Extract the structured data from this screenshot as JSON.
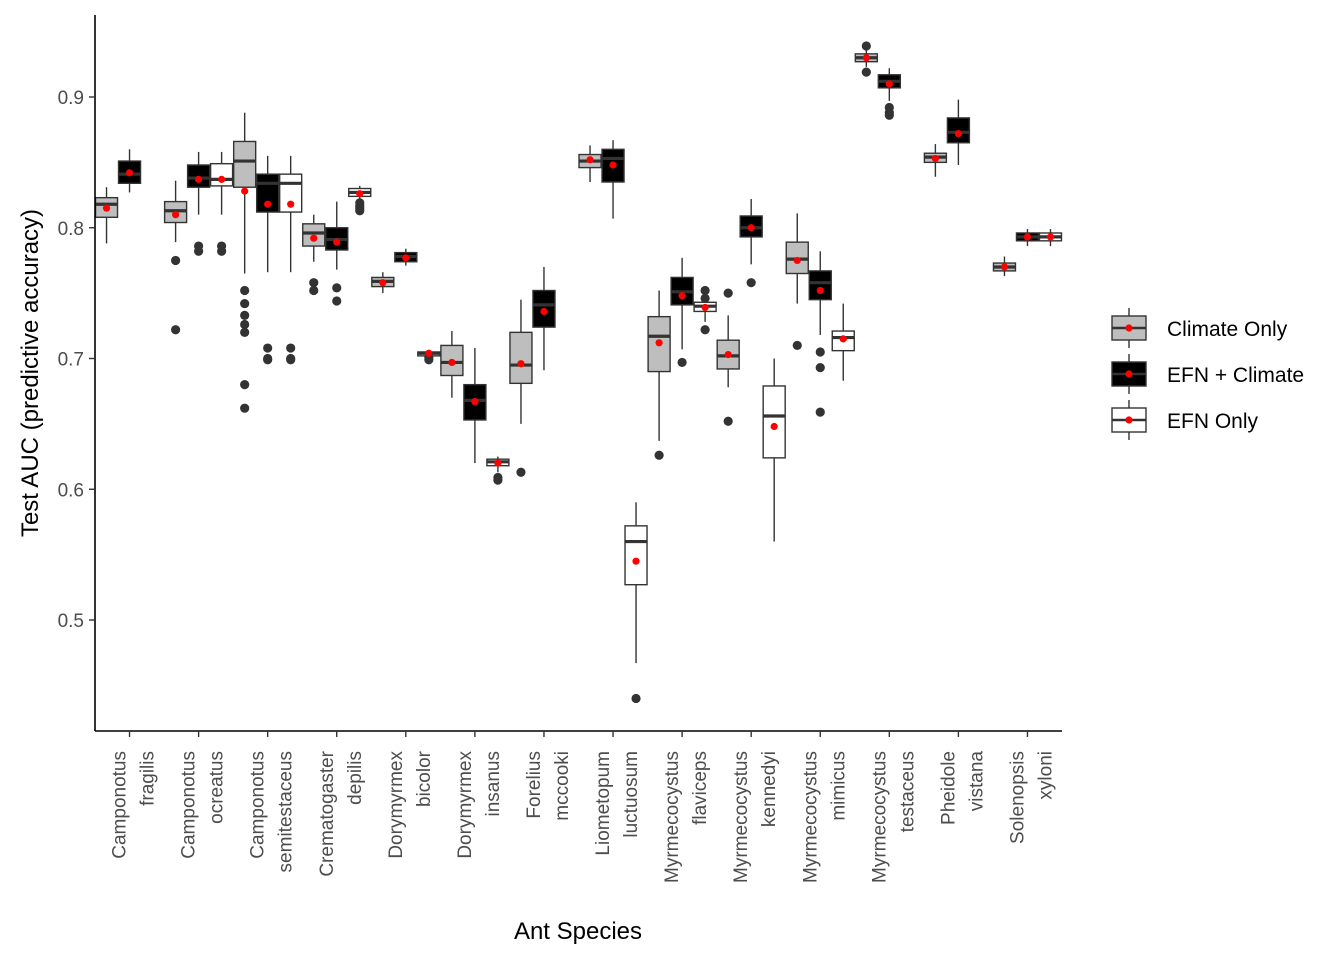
{
  "chart_data": {
    "type": "boxplot",
    "xlabel": "Ant Species",
    "ylabel": "Test AUC (predictive accuracy)",
    "ylim": [
      0.43,
      0.96
    ],
    "yticks": [
      0.5,
      0.6,
      0.7,
      0.8,
      0.9
    ],
    "ytick_labels": [
      "0.5",
      "0.6",
      "0.7",
      "0.8",
      "0.9"
    ],
    "grid": false,
    "legend_position": "right",
    "mean_marker_color": "#ff0000",
    "categories": [
      [
        "Camponotus",
        "fragilis"
      ],
      [
        "Camponotus",
        "ocreatus"
      ],
      [
        "Camponotus",
        "semitestaceus"
      ],
      [
        "Crematogaster",
        "depilis"
      ],
      [
        "Dorymyrmex",
        "bicolor"
      ],
      [
        "Dorymyrmex",
        "insanus"
      ],
      [
        "Forelius",
        "mccooki"
      ],
      [
        "Liometopum",
        "luctuosum"
      ],
      [
        "Myrmecocystus",
        "flaviceps"
      ],
      [
        "Myrmecocystus",
        "kennedyi"
      ],
      [
        "Myrmecocystus",
        "mimicus"
      ],
      [
        "Myrmecocystus",
        "testaceus"
      ],
      [
        "Pheidole",
        "vistana"
      ],
      [
        "Solenopsis",
        "xyloni"
      ]
    ],
    "series": [
      {
        "name": "Climate Only",
        "fill": "#bebebe",
        "line": "#333333",
        "boxes": [
          {
            "cat": 0,
            "wlo": 0.788,
            "q1": 0.808,
            "med": 0.818,
            "q3": 0.823,
            "whi": 0.831,
            "mean": 0.815,
            "outliers": []
          },
          {
            "cat": 1,
            "wlo": 0.789,
            "q1": 0.804,
            "med": 0.813,
            "q3": 0.82,
            "whi": 0.836,
            "mean": 0.81,
            "outliers": [
              0.775,
              0.722
            ]
          },
          {
            "cat": 2,
            "wlo": 0.765,
            "q1": 0.831,
            "med": 0.851,
            "q3": 0.866,
            "whi": 0.888,
            "mean": 0.828,
            "outliers": [
              0.752,
              0.742,
              0.733,
              0.726,
              0.72,
              0.68,
              0.662
            ]
          },
          {
            "cat": 3,
            "wlo": 0.774,
            "q1": 0.786,
            "med": 0.796,
            "q3": 0.803,
            "whi": 0.81,
            "mean": 0.792,
            "outliers": [
              0.758,
              0.752
            ]
          },
          {
            "cat": 4,
            "wlo": 0.75,
            "q1": 0.755,
            "med": 0.759,
            "q3": 0.762,
            "whi": 0.766,
            "mean": 0.758,
            "outliers": []
          },
          {
            "cat": 5,
            "wlo": 0.67,
            "q1": 0.687,
            "med": 0.697,
            "q3": 0.71,
            "whi": 0.721,
            "mean": 0.697,
            "outliers": []
          },
          {
            "cat": 6,
            "wlo": 0.65,
            "q1": 0.681,
            "med": 0.695,
            "q3": 0.72,
            "whi": 0.745,
            "mean": 0.696,
            "outliers": [
              0.613
            ]
          },
          {
            "cat": 7,
            "wlo": 0.835,
            "q1": 0.846,
            "med": 0.851,
            "q3": 0.856,
            "whi": 0.863,
            "mean": 0.852,
            "outliers": []
          },
          {
            "cat": 8,
            "wlo": 0.637,
            "q1": 0.69,
            "med": 0.717,
            "q3": 0.732,
            "whi": 0.752,
            "mean": 0.712,
            "outliers": [
              0.626
            ]
          },
          {
            "cat": 9,
            "wlo": 0.678,
            "q1": 0.692,
            "med": 0.702,
            "q3": 0.714,
            "whi": 0.733,
            "mean": 0.703,
            "outliers": [
              0.75,
              0.652
            ]
          },
          {
            "cat": 10,
            "wlo": 0.742,
            "q1": 0.765,
            "med": 0.776,
            "q3": 0.789,
            "whi": 0.811,
            "mean": 0.775,
            "outliers": [
              0.71
            ]
          },
          {
            "cat": 11,
            "wlo": 0.923,
            "q1": 0.927,
            "med": 0.93,
            "q3": 0.933,
            "whi": 0.936,
            "mean": 0.93,
            "outliers": [
              0.939,
              0.919
            ]
          },
          {
            "cat": 12,
            "wlo": 0.839,
            "q1": 0.85,
            "med": 0.854,
            "q3": 0.857,
            "whi": 0.864,
            "mean": 0.853,
            "outliers": []
          },
          {
            "cat": 13,
            "wlo": 0.763,
            "q1": 0.767,
            "med": 0.77,
            "q3": 0.773,
            "whi": 0.778,
            "mean": 0.77,
            "outliers": []
          }
        ]
      },
      {
        "name": "EFN + Climate",
        "fill": "#000000",
        "line": "#333333",
        "boxes": [
          {
            "cat": 0,
            "wlo": 0.827,
            "q1": 0.834,
            "med": 0.841,
            "q3": 0.851,
            "whi": 0.86,
            "mean": 0.842,
            "outliers": []
          },
          {
            "cat": 1,
            "wlo": 0.81,
            "q1": 0.831,
            "med": 0.838,
            "q3": 0.848,
            "whi": 0.858,
            "mean": 0.837,
            "outliers": [
              0.786,
              0.782
            ]
          },
          {
            "cat": 2,
            "wlo": 0.766,
            "q1": 0.812,
            "med": 0.834,
            "q3": 0.841,
            "whi": 0.855,
            "mean": 0.818,
            "outliers": [
              0.708,
              0.7,
              0.699
            ]
          },
          {
            "cat": 3,
            "wlo": 0.768,
            "q1": 0.783,
            "med": 0.791,
            "q3": 0.8,
            "whi": 0.82,
            "mean": 0.789,
            "outliers": [
              0.754,
              0.744
            ]
          },
          {
            "cat": 4,
            "wlo": 0.771,
            "q1": 0.774,
            "med": 0.778,
            "q3": 0.781,
            "whi": 0.784,
            "mean": 0.777,
            "outliers": []
          },
          {
            "cat": 5,
            "wlo": 0.62,
            "q1": 0.653,
            "med": 0.668,
            "q3": 0.68,
            "whi": 0.708,
            "mean": 0.667,
            "outliers": []
          },
          {
            "cat": 6,
            "wlo": 0.691,
            "q1": 0.724,
            "med": 0.741,
            "q3": 0.752,
            "whi": 0.77,
            "mean": 0.736,
            "outliers": []
          },
          {
            "cat": 7,
            "wlo": 0.807,
            "q1": 0.835,
            "med": 0.853,
            "q3": 0.86,
            "whi": 0.867,
            "mean": 0.848,
            "outliers": []
          },
          {
            "cat": 8,
            "wlo": 0.707,
            "q1": 0.741,
            "med": 0.751,
            "q3": 0.762,
            "whi": 0.777,
            "mean": 0.748,
            "outliers": [
              0.697
            ]
          },
          {
            "cat": 9,
            "wlo": 0.772,
            "q1": 0.793,
            "med": 0.8,
            "q3": 0.809,
            "whi": 0.822,
            "mean": 0.8,
            "outliers": [
              0.758
            ]
          },
          {
            "cat": 10,
            "wlo": 0.718,
            "q1": 0.745,
            "med": 0.758,
            "q3": 0.767,
            "whi": 0.782,
            "mean": 0.752,
            "outliers": [
              0.705,
              0.693,
              0.659
            ]
          },
          {
            "cat": 11,
            "wlo": 0.897,
            "q1": 0.907,
            "med": 0.912,
            "q3": 0.917,
            "whi": 0.922,
            "mean": 0.91,
            "outliers": [
              0.892,
              0.888,
              0.886
            ]
          },
          {
            "cat": 12,
            "wlo": 0.848,
            "q1": 0.865,
            "med": 0.873,
            "q3": 0.884,
            "whi": 0.898,
            "mean": 0.872,
            "outliers": []
          },
          {
            "cat": 13,
            "wlo": 0.786,
            "q1": 0.79,
            "med": 0.793,
            "q3": 0.796,
            "whi": 0.799,
            "mean": 0.793,
            "outliers": []
          }
        ]
      },
      {
        "name": "EFN Only",
        "fill": "#ffffff",
        "line": "#333333",
        "boxes": [
          {
            "cat": 1,
            "wlo": 0.81,
            "q1": 0.832,
            "med": 0.837,
            "q3": 0.849,
            "whi": 0.858,
            "mean": 0.837,
            "outliers": [
              0.786,
              0.782
            ]
          },
          {
            "cat": 2,
            "wlo": 0.766,
            "q1": 0.812,
            "med": 0.834,
            "q3": 0.841,
            "whi": 0.855,
            "mean": 0.818,
            "outliers": [
              0.708,
              0.7,
              0.699
            ]
          },
          {
            "cat": 3,
            "wlo": 0.82,
            "q1": 0.824,
            "med": 0.827,
            "q3": 0.83,
            "whi": 0.832,
            "mean": 0.826,
            "outliers": [
              0.819,
              0.817,
              0.815,
              0.813
            ]
          },
          {
            "cat": 4,
            "wlo": 0.7,
            "q1": 0.702,
            "med": 0.704,
            "q3": 0.705,
            "whi": 0.706,
            "mean": 0.704,
            "outliers": [
              0.701,
              0.699
            ]
          },
          {
            "cat": 5,
            "wlo": 0.613,
            "q1": 0.618,
            "med": 0.621,
            "q3": 0.623,
            "whi": 0.625,
            "mean": 0.62,
            "outliers": [
              0.609,
              0.607
            ]
          },
          {
            "cat": 7,
            "wlo": 0.467,
            "q1": 0.527,
            "med": 0.56,
            "q3": 0.572,
            "whi": 0.59,
            "mean": 0.545,
            "outliers": [
              0.44
            ]
          },
          {
            "cat": 8,
            "wlo": 0.728,
            "q1": 0.736,
            "med": 0.74,
            "q3": 0.743,
            "whi": 0.748,
            "mean": 0.739,
            "outliers": [
              0.752,
              0.746,
              0.722
            ]
          },
          {
            "cat": 9,
            "wlo": 0.56,
            "q1": 0.624,
            "med": 0.656,
            "q3": 0.679,
            "whi": 0.7,
            "mean": 0.648,
            "outliers": []
          },
          {
            "cat": 10,
            "wlo": 0.683,
            "q1": 0.706,
            "med": 0.716,
            "q3": 0.721,
            "whi": 0.742,
            "mean": 0.715,
            "outliers": []
          },
          {
            "cat": 13,
            "wlo": 0.786,
            "q1": 0.79,
            "med": 0.793,
            "q3": 0.796,
            "whi": 0.799,
            "mean": 0.793,
            "outliers": []
          }
        ]
      }
    ]
  }
}
